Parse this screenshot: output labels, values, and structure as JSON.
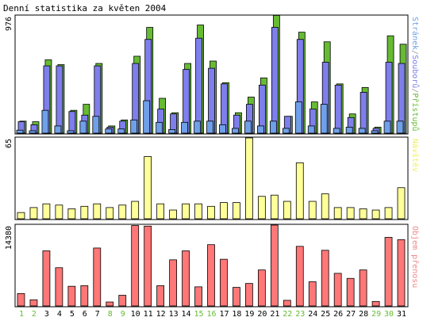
{
  "chart_data": [
    {
      "type": "bar",
      "title": "Denní statistika za květen 2004",
      "y_max_label": "976",
      "ylim": [
        0,
        976
      ],
      "legend": {
        "parts": [
          {
            "text": "Stránek",
            "color": "#6fa0e8"
          },
          {
            "text": "/",
            "color": "#9a9a9a"
          },
          {
            "text": "Souborů",
            "color": "#7e7eec"
          },
          {
            "text": "/",
            "color": "#9a9a9a"
          },
          {
            "text": "Přístupů",
            "color": "#66bb33"
          }
        ],
        "placement": "right"
      },
      "categories": [
        "1",
        "2",
        "3",
        "4",
        "5",
        "6",
        "7",
        "8",
        "9",
        "10",
        "11",
        "12",
        "13",
        "14",
        "15",
        "16",
        "17",
        "18",
        "19",
        "20",
        "21",
        "22",
        "23",
        "24",
        "25",
        "26",
        "27",
        "28",
        "29",
        "30",
        "31"
      ],
      "series": [
        {
          "name": "Přístupů",
          "color": "#66bb33",
          "values": [
            100,
            95,
            610,
            570,
            190,
            240,
            580,
            60,
            110,
            640,
            880,
            290,
            170,
            580,
            900,
            600,
            420,
            170,
            300,
            460,
            980,
            140,
            840,
            260,
            760,
            410,
            160,
            380,
            50,
            810,
            740
          ]
        },
        {
          "name": "Souborů",
          "color": "#7e7eec",
          "values": [
            95,
            70,
            560,
            560,
            180,
            150,
            560,
            50,
            100,
            580,
            780,
            200,
            160,
            530,
            790,
            540,
            410,
            150,
            240,
            400,
            880,
            140,
            780,
            200,
            590,
            400,
            130,
            340,
            40,
            590,
            580
          ]
        },
        {
          "name": "Stránek",
          "color": "#6fa0e8",
          "values": [
            25,
            20,
            190,
            60,
            20,
            100,
            140,
            35,
            35,
            110,
            270,
            90,
            30,
            90,
            100,
            100,
            70,
            40,
            100,
            60,
            100,
            40,
            260,
            60,
            240,
            40,
            50,
            40,
            20,
            100,
            100
          ]
        }
      ]
    },
    {
      "type": "bar",
      "title": "",
      "y_max_label": "65",
      "ylim": [
        0,
        65
      ],
      "legend": {
        "parts": [
          {
            "text": "Návštěv",
            "color": "#eeee66"
          }
        ],
        "placement": "right"
      },
      "categories": [
        "1",
        "2",
        "3",
        "4",
        "5",
        "6",
        "7",
        "8",
        "9",
        "10",
        "11",
        "12",
        "13",
        "14",
        "15",
        "16",
        "17",
        "18",
        "19",
        "20",
        "21",
        "22",
        "23",
        "24",
        "25",
        "26",
        "27",
        "28",
        "29",
        "30",
        "31"
      ],
      "series": [
        {
          "name": "Návštěv",
          "color": "#ffff99",
          "values": [
            5,
            9,
            12,
            11,
            8,
            10,
            12,
            9,
            11,
            14,
            50,
            12,
            7,
            12,
            12,
            10,
            13,
            13,
            65,
            18,
            19,
            14,
            45,
            14,
            20,
            9,
            9,
            8,
            7,
            9,
            25
          ]
        }
      ]
    },
    {
      "type": "bar",
      "title": "",
      "y_max_label": "14380",
      "ylim": [
        0,
        14380
      ],
      "legend": {
        "parts": [
          {
            "text": "Objem přenosu",
            "color": "#ee8888"
          }
        ],
        "placement": "right"
      },
      "categories": [
        "1",
        "2",
        "3",
        "4",
        "5",
        "6",
        "7",
        "8",
        "9",
        "10",
        "11",
        "12",
        "13",
        "14",
        "15",
        "16",
        "17",
        "18",
        "19",
        "20",
        "21",
        "22",
        "23",
        "24",
        "25",
        "26",
        "27",
        "28",
        "29",
        "30",
        "31"
      ],
      "series": [
        {
          "name": "Objem přenosu",
          "color": "#ff7777",
          "values": [
            2200,
            1100,
            9800,
            6800,
            3500,
            3600,
            10300,
            700,
            1900,
            14300,
            14200,
            3600,
            8200,
            9800,
            3400,
            10900,
            8300,
            3300,
            4000,
            6400,
            14380,
            1000,
            10600,
            4300,
            9900,
            5800,
            4900,
            6400,
            800,
            12200,
            11800
          ]
        }
      ]
    }
  ],
  "x_axis": {
    "labels": [
      "1",
      "2",
      "3",
      "4",
      "5",
      "6",
      "7",
      "8",
      "9",
      "10",
      "11",
      "12",
      "13",
      "14",
      "15",
      "16",
      "17",
      "18",
      "19",
      "20",
      "21",
      "22",
      "23",
      "24",
      "25",
      "26",
      "27",
      "28",
      "29",
      "30",
      "31"
    ],
    "weekend_days": [
      "1",
      "2",
      "8",
      "9",
      "15",
      "16",
      "22",
      "23",
      "29",
      "30"
    ],
    "weekday_color": "#000000",
    "weekend_color": "#66bb33"
  },
  "colors": {
    "border": "#000000",
    "grid": "#aaaaaa",
    "bar_outline": "#000000"
  }
}
